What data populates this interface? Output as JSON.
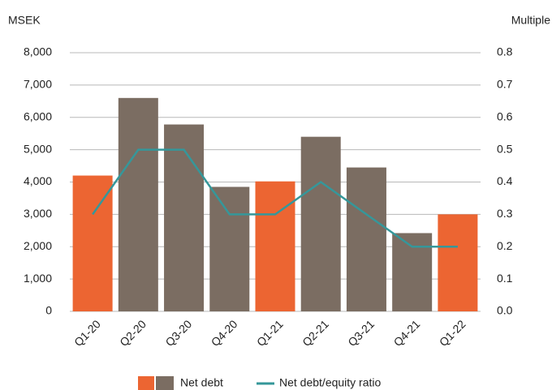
{
  "chart_data": {
    "type": "bar_line",
    "y_label": "MSEK",
    "y2_label": "Multiple",
    "categories": [
      "Q1-20",
      "Q2-20",
      "Q3-20",
      "Q4-20",
      "Q1-21",
      "Q2-21",
      "Q3-21",
      "Q4-21",
      "Q1-22"
    ],
    "series": [
      {
        "name": "Net debt",
        "type": "bar",
        "colors": [
          "#ec6532",
          "#7b6d62",
          "#7b6d62",
          "#7b6d62",
          "#ec6532",
          "#7b6d62",
          "#7b6d62",
          "#7b6d62",
          "#ec6532"
        ],
        "values": [
          4200,
          6600,
          5780,
          3850,
          4020,
          5400,
          4450,
          2420,
          3000
        ]
      },
      {
        "name": "Net debt/equity ratio",
        "type": "line",
        "color": "#35979a",
        "axis": "y2",
        "values": [
          0.3,
          0.5,
          0.5,
          0.3,
          0.3,
          0.4,
          0.3,
          0.2,
          0.2
        ]
      }
    ],
    "ylim": [
      0,
      8000
    ],
    "yticks": [
      0,
      {
        "value": 1000,
        "label": "1,000"
      },
      {
        "value": 2000,
        "label": "2,000"
      },
      {
        "value": 3000,
        "label": "3,000"
      },
      {
        "value": 4000,
        "label": "4,000"
      },
      {
        "value": 5000,
        "label": "5,000"
      },
      {
        "value": 6000,
        "label": "6,000"
      },
      {
        "value": 7000,
        "label": "7,000"
      },
      {
        "value": 8000,
        "label": "8,000"
      }
    ],
    "y2lim": [
      0,
      0.8
    ],
    "y2ticks": [
      {
        "value": 0,
        "label": "0.0"
      },
      0.1,
      0.2,
      0.3,
      0.4,
      0.5,
      0.6,
      0.7,
      0.8
    ],
    "grid": true
  }
}
